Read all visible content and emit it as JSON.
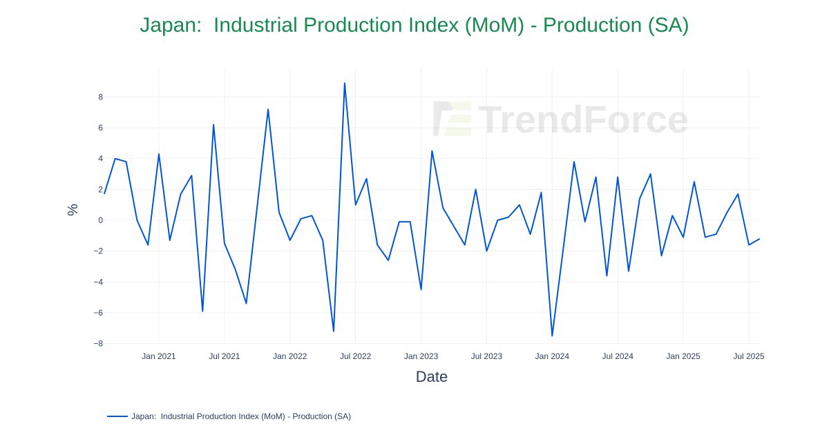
{
  "chart_data": {
    "type": "line",
    "title": "Japan:  Industrial Production Index (MoM) - Production (SA)",
    "xlabel": "Date",
    "ylabel": "%",
    "ylim": [
      -8.5,
      9.5
    ],
    "yticks": [
      8,
      6,
      4,
      2,
      0,
      -2,
      -4,
      -6,
      -8
    ],
    "ytick_labels": [
      "8",
      "6",
      "4",
      "2",
      "0",
      "−2",
      "−4",
      "−6",
      "−8"
    ],
    "xticks": [
      "2021-01",
      "2021-07",
      "2022-01",
      "2022-07",
      "2023-01",
      "2023-07",
      "2024-01",
      "2024-07",
      "2025-01",
      "2025-07"
    ],
    "xtick_labels": [
      "Jan 2021",
      "Jul 2021",
      "Jan 2022",
      "Jul 2022",
      "Jan 2023",
      "Jul 2023",
      "Jan 2024",
      "Jul 2024",
      "Jan 2025",
      "Jul 2025"
    ],
    "grid": true,
    "legend_position": "bottom-left",
    "watermark": "TrendForce",
    "series": [
      {
        "name": "Japan:  Industrial Production Index (MoM) - Production (SA)",
        "color": "#0055d4",
        "start": "2020-08",
        "frequency": "monthly",
        "values": [
          1.7,
          4.0,
          3.8,
          0.0,
          -1.6,
          4.3,
          -1.3,
          1.7,
          2.9,
          -5.9,
          6.2,
          -1.5,
          -3.2,
          -5.4,
          0.9,
          7.2,
          0.5,
          -1.3,
          0.1,
          0.3,
          -1.3,
          -7.2,
          8.9,
          1.0,
          2.7,
          -1.6,
          -2.6,
          -0.1,
          -0.1,
          -4.5,
          4.5,
          0.8,
          -0.4,
          -1.6,
          2.0,
          -2.0,
          0.0,
          0.2,
          1.0,
          -0.9,
          1.8,
          -7.5,
          -1.9,
          3.8,
          -0.1,
          2.8,
          -3.6,
          2.8,
          -3.3,
          1.4,
          3.0,
          -2.3,
          0.3,
          -1.1,
          2.5,
          -1.1,
          -0.9,
          0.5,
          1.7,
          -1.6,
          -1.2
        ]
      }
    ]
  }
}
